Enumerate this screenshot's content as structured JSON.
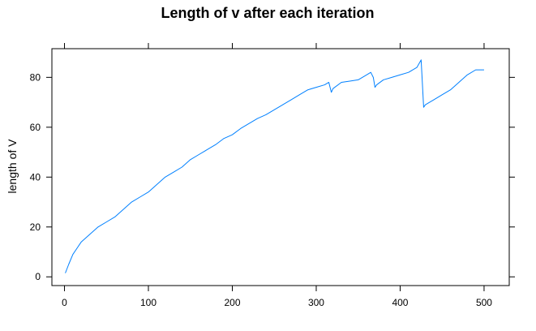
{
  "chart_data": {
    "type": "line",
    "title": "Length of v after each iteration",
    "xlabel": "",
    "ylabel": "length of V",
    "xlim": [
      -15,
      530
    ],
    "ylim": [
      -3.5,
      91.5
    ],
    "xticks": [
      0,
      100,
      200,
      300,
      400,
      500
    ],
    "yticks": [
      0,
      20,
      40,
      60,
      80
    ],
    "grid": false,
    "line_color": "#0080ff",
    "series": [
      {
        "x": [
          1,
          5,
          10,
          15,
          20,
          30,
          40,
          50,
          60,
          70,
          80,
          90,
          100,
          110,
          120,
          130,
          140,
          150,
          160,
          170,
          180,
          190,
          200,
          210,
          220,
          230,
          240,
          250,
          260,
          270,
          280,
          290,
          300,
          310,
          315,
          318,
          320,
          330,
          340,
          350,
          360,
          365,
          368,
          370,
          372,
          380,
          390,
          400,
          410,
          420,
          425,
          428,
          430,
          440,
          450,
          460,
          470,
          480,
          490,
          500
        ],
        "y": [
          1.5,
          5,
          9,
          11.5,
          14,
          17,
          20,
          22,
          24,
          27,
          30,
          32,
          34,
          37,
          40,
          42,
          44,
          47,
          49,
          51,
          53,
          55.5,
          57,
          59.5,
          61.5,
          63.5,
          65,
          67,
          69,
          71,
          73,
          75,
          76,
          77,
          78,
          74,
          75.5,
          78,
          78.5,
          79,
          81,
          82,
          80,
          76,
          77,
          79,
          80,
          81,
          82,
          84,
          87,
          68,
          69,
          71,
          73,
          75,
          78,
          81,
          83,
          83
        ]
      }
    ]
  }
}
